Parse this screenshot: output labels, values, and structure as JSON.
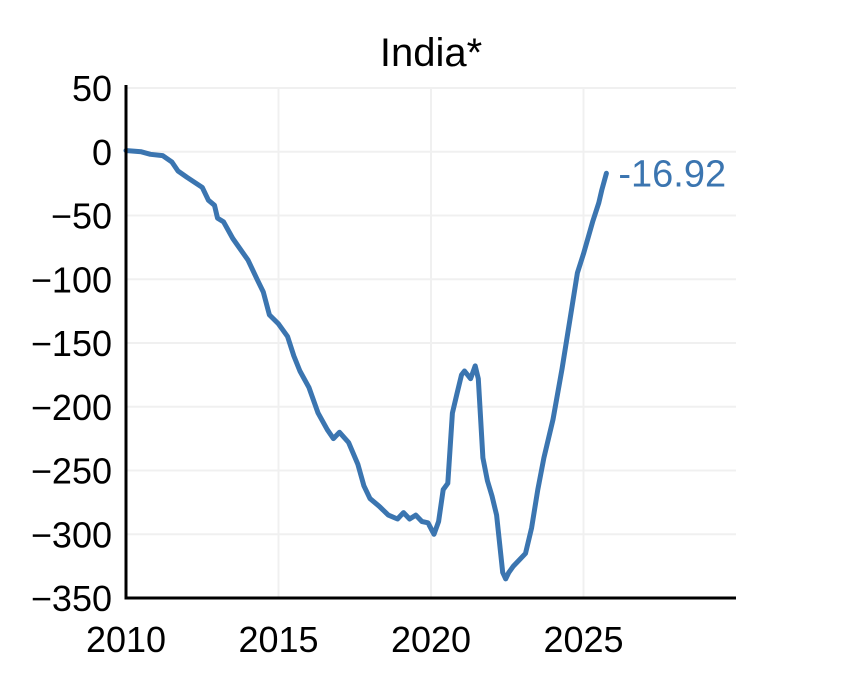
{
  "chart_data": {
    "type": "line",
    "title": "India*",
    "xlabel": "",
    "ylabel": "",
    "xlim": [
      2010,
      2030
    ],
    "ylim": [
      -350,
      50
    ],
    "x_ticks": [
      2010,
      2015,
      2020,
      2025
    ],
    "x_tick_labels": [
      "2010",
      "2015",
      "2020",
      "2025"
    ],
    "y_ticks": [
      50,
      0,
      -50,
      -100,
      -150,
      -200,
      -250,
      -300,
      -350
    ],
    "y_tick_labels": [
      "50",
      "0",
      "−50",
      "−100",
      "−150",
      "−200",
      "−250",
      "−300",
      "−350"
    ],
    "grid": true,
    "series": [
      {
        "name": "",
        "color": "#3b75b0",
        "end_label": "-16.92",
        "x": [
          2010.0,
          2010.5,
          2010.8,
          2011.2,
          2011.5,
          2011.7,
          2012.0,
          2012.5,
          2012.7,
          2012.9,
          2013.0,
          2013.2,
          2013.5,
          2014.0,
          2014.3,
          2014.5,
          2014.7,
          2015.0,
          2015.3,
          2015.5,
          2015.7,
          2016.0,
          2016.3,
          2016.6,
          2016.8,
          2017.0,
          2017.3,
          2017.6,
          2017.8,
          2018.0,
          2018.3,
          2018.6,
          2018.9,
          2019.1,
          2019.3,
          2019.5,
          2019.7,
          2019.9,
          2020.1,
          2020.25,
          2020.4,
          2020.55,
          2020.7,
          2020.85,
          2021.0,
          2021.1,
          2021.3,
          2021.45,
          2021.55,
          2021.7,
          2021.85,
          2022.0,
          2022.15,
          2022.35,
          2022.45,
          2022.55,
          2022.7,
          2022.9,
          2023.1,
          2023.3,
          2023.5,
          2023.7,
          2024.0,
          2024.3,
          2024.6,
          2024.8,
          2025.0,
          2025.3,
          2025.5,
          2025.6,
          2025.75
        ],
        "values": [
          1,
          0,
          -2,
          -3,
          -8,
          -15,
          -20,
          -28,
          -38,
          -42,
          -52,
          -55,
          -68,
          -85,
          -100,
          -110,
          -128,
          -135,
          -145,
          -160,
          -172,
          -185,
          -205,
          -218,
          -225,
          -220,
          -228,
          -245,
          -262,
          -272,
          -278,
          -285,
          -288,
          -283,
          -288,
          -285,
          -290,
          -291,
          -300,
          -290,
          -265,
          -260,
          -205,
          -190,
          -175,
          -172,
          -178,
          -168,
          -178,
          -240,
          -258,
          -270,
          -285,
          -330,
          -335,
          -330,
          -325,
          -320,
          -315,
          -295,
          -265,
          -240,
          -210,
          -170,
          -125,
          -95,
          -80,
          -55,
          -40,
          -30,
          -16.92
        ]
      }
    ]
  }
}
